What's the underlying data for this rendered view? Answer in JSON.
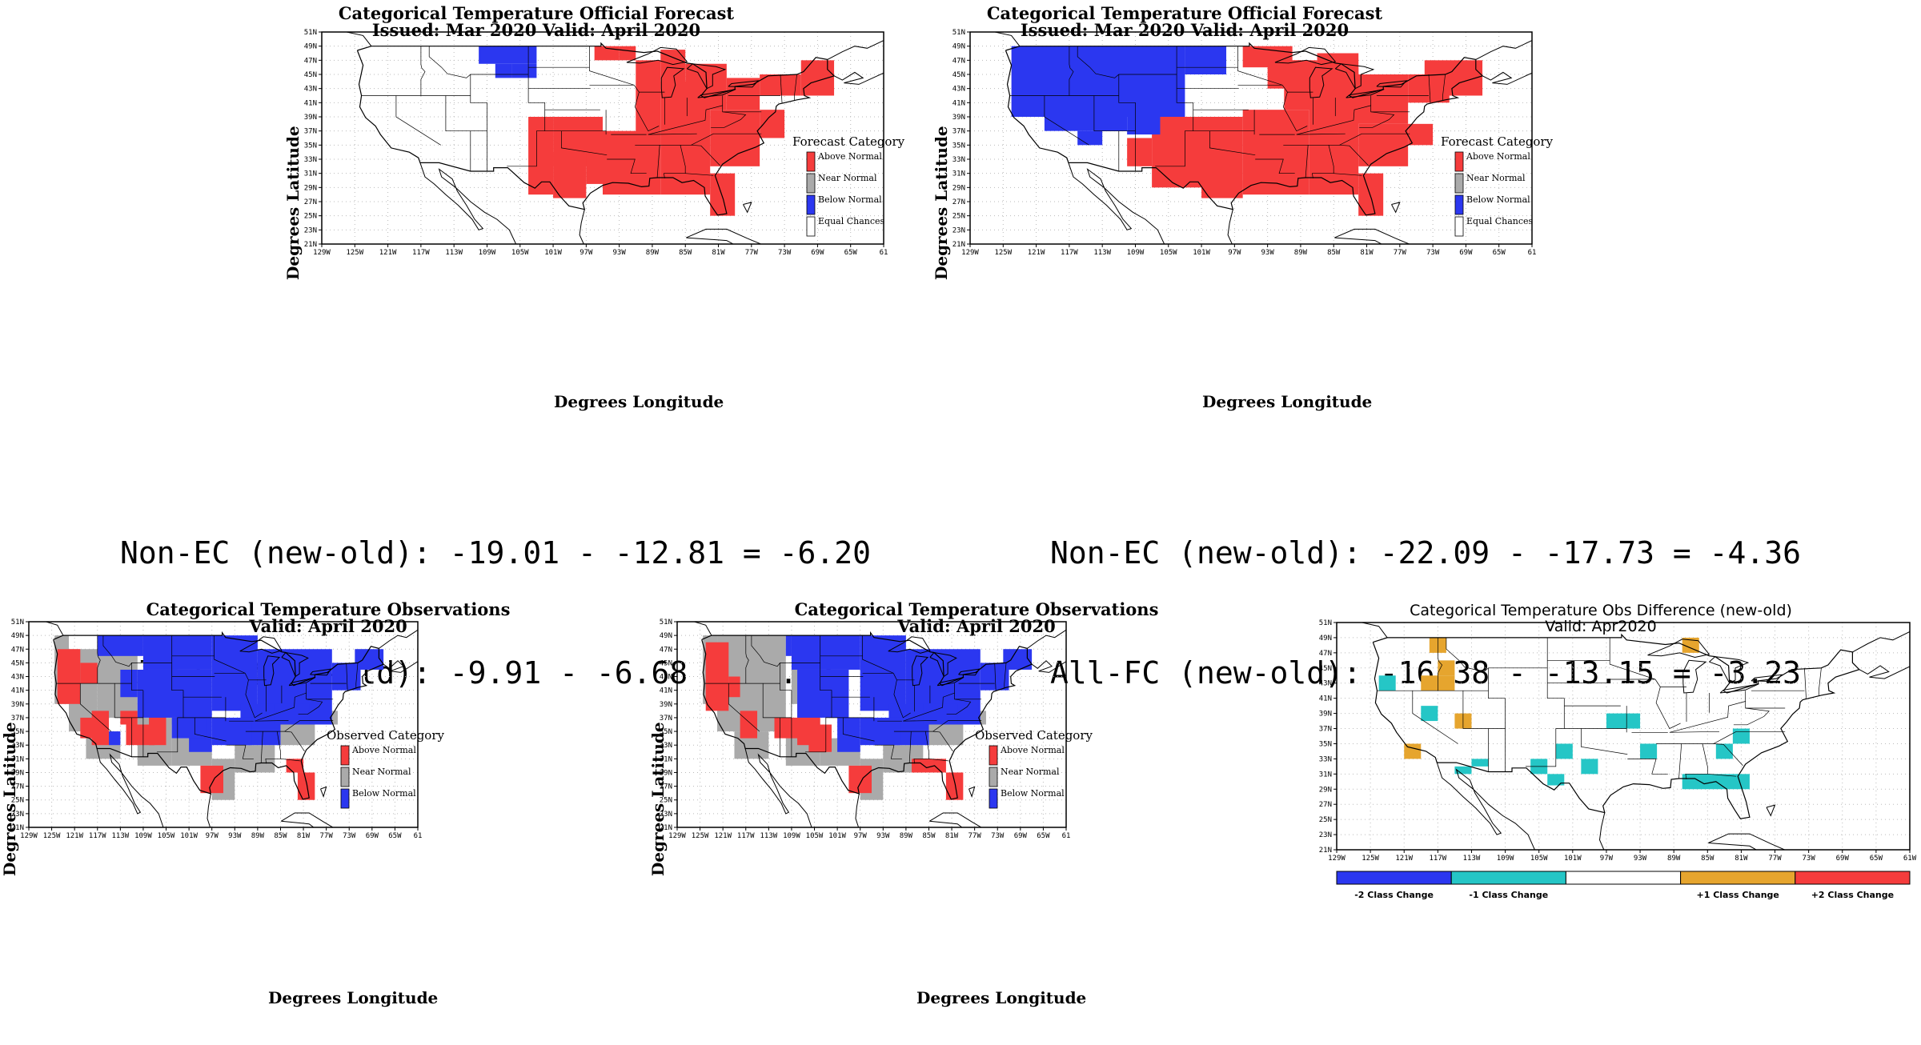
{
  "colors": {
    "above": "#f53c3c",
    "near": "#aaaaaa",
    "below": "#2b37f0",
    "equal": "#ffffff",
    "minus1": "#25c6c6",
    "plus1": "#e6a52e",
    "minus2": "#2b37f0",
    "plus2": "#f53c3c"
  },
  "axes": {
    "lat_ticks": [
      "51N",
      "49N",
      "47N",
      "45N",
      "43N",
      "41N",
      "39N",
      "37N",
      "35N",
      "33N",
      "31N",
      "29N",
      "27N",
      "25N",
      "23N",
      "21N"
    ],
    "lon_ticks": [
      "129W",
      "125W",
      "121W",
      "117W",
      "113W",
      "109W",
      "105W",
      "101W",
      "97W",
      "93W",
      "89W",
      "85W",
      "81W",
      "77W",
      "73W",
      "69W",
      "65W",
      "61"
    ],
    "lon_ticks_diff": [
      "129W",
      "125W",
      "121W",
      "117W",
      "113W",
      "109W",
      "105W",
      "101W",
      "97W",
      "93W",
      "89W",
      "85W",
      "81W",
      "77W",
      "73W",
      "69W",
      "65W",
      "61W"
    ],
    "ylabel": "Degrees Latitude",
    "xlabel": "Degrees Longitude"
  },
  "panels": [
    {
      "title1": "Categorical Temperature Official Forecast",
      "title2": "Issued: Mar 2020 Valid: April 2020",
      "legend_title": "Forecast Category",
      "legend": [
        "Above Normal",
        "Near Normal",
        "Below Normal",
        "Equal Chances"
      ]
    },
    {
      "title1": "Categorical Temperature Official Forecast",
      "title2": "Issued: Mar 2020 Valid: April 2020",
      "legend_title": "Forecast Category",
      "legend": [
        "Above Normal",
        "Near Normal",
        "Below Normal",
        "Equal Chances"
      ]
    },
    {
      "title1": "Categorical Temperature Observations",
      "title2": "Valid: April 2020",
      "legend_title": "Observed Category",
      "legend": [
        "Above Normal",
        "Near Normal",
        "Below Normal"
      ]
    },
    {
      "title1": "Categorical Temperature Observations",
      "title2": "Valid: April 2020",
      "legend_title": "Observed Category",
      "legend": [
        "Above Normal",
        "Near Normal",
        "Below Normal"
      ]
    },
    {
      "title1": "Categorical Temperature Obs Difference (new-old)",
      "title2": "Valid: Apr2020",
      "legend": [
        "-2 Class Change",
        "-1 Class Change",
        "+1 Class Change",
        "+2 Class Change"
      ]
    }
  ],
  "stats": {
    "left_line1": "Non-EC (new-old): -19.01 - -12.81 = -6.20",
    "left_line2": "All-FC (new-old): -9.91 - -6.68 = -3.23",
    "right_line1": "Non-EC (new-old): -22.09 - -17.73 = -4.36",
    "right_line2": "All-FC (new-old): -16.38 - -13.15 = -3.23"
  }
}
